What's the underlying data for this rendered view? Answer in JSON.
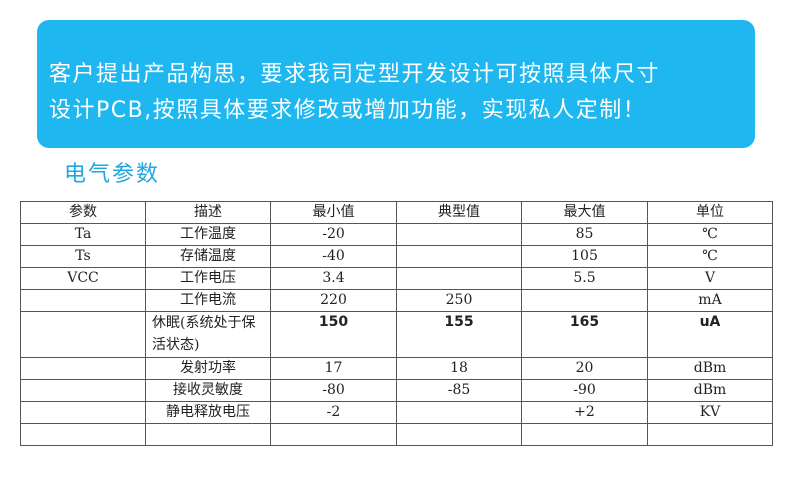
{
  "banner": {
    "line1": "客户提出产品构思，要求我司定型开发设计可按照具体尺寸",
    "line2": "设计PCB,按照具体要求修改或增加功能，实现私人定制！",
    "color": "#1eb7ef"
  },
  "section_title": "电气参数",
  "table": {
    "headers": [
      "参数",
      "描述",
      "最小值",
      "典型值",
      "最大值",
      "单位"
    ],
    "rows": [
      [
        "Ta",
        "工作温度",
        "-20",
        "",
        "85",
        "℃"
      ],
      [
        "Ts",
        "存储温度",
        "-40",
        "",
        "105",
        "℃"
      ],
      [
        "VCC",
        "工作电压",
        "3.4",
        "",
        "5.5",
        "V"
      ],
      [
        "",
        "工作电流",
        "220",
        "250",
        "",
        "mA"
      ],
      [
        "",
        "休眠(系统处于保活状态)",
        "150",
        "155",
        "165",
        "uA"
      ],
      [
        "",
        "发射功率",
        "17",
        "18",
        "20",
        "dBm"
      ],
      [
        "",
        "接收灵敏度",
        "-80",
        "-85",
        "-90",
        "dBm"
      ],
      [
        "",
        "静电释放电压",
        "-2",
        "",
        "+2",
        "KV"
      ],
      [
        "",
        "",
        "",
        "",
        "",
        ""
      ]
    ]
  }
}
